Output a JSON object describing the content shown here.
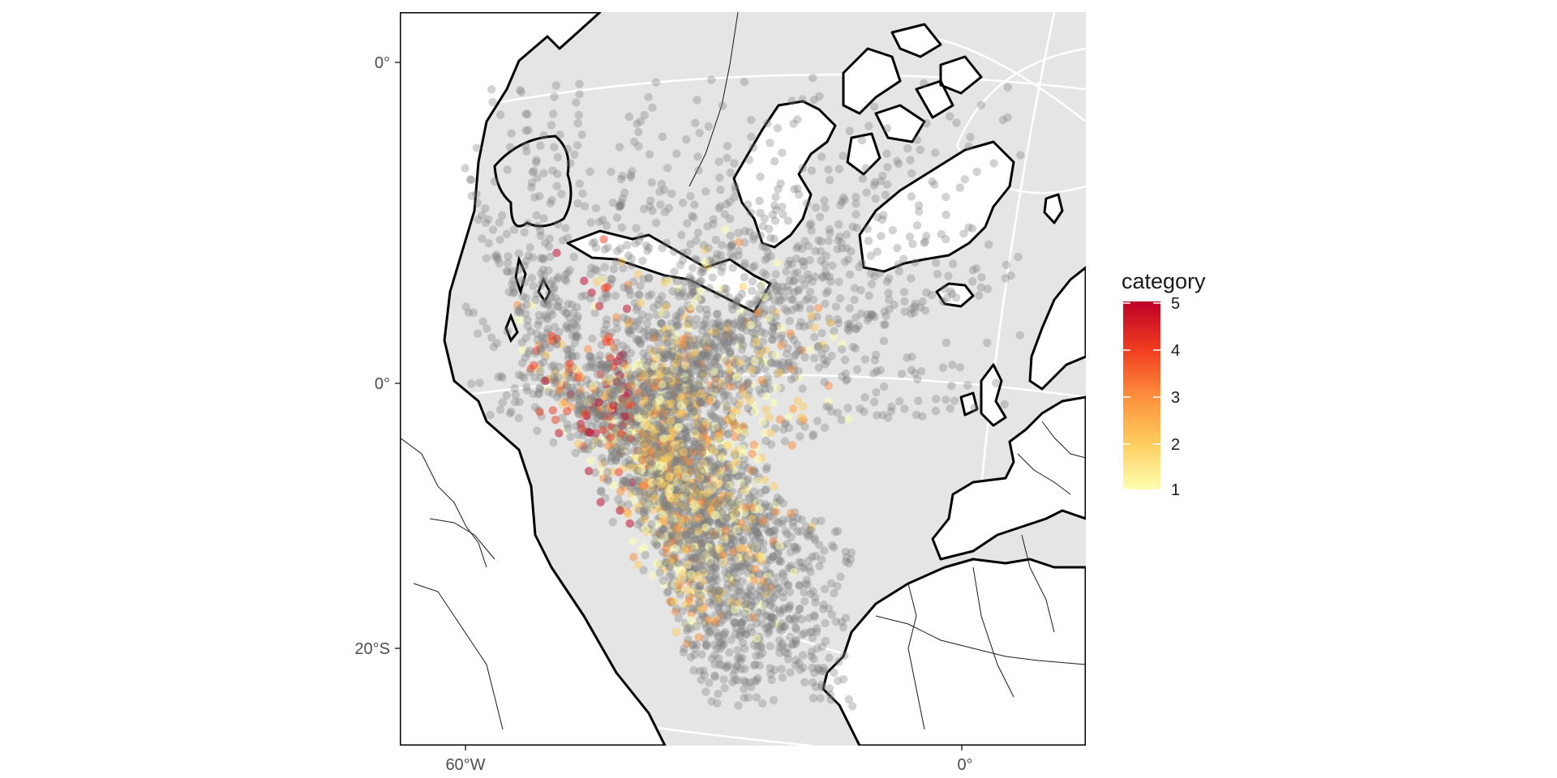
{
  "map": {
    "y_ticks": [
      "0°",
      "0°",
      "20°S"
    ],
    "x_ticks": [
      "60°W",
      "0°"
    ]
  },
  "legend": {
    "title": "category",
    "labels": [
      "5",
      "4",
      "3",
      "2",
      "1"
    ],
    "gradient": [
      "#ffffb2",
      "#fecc5c",
      "#fd8d3c",
      "#f03b20",
      "#bd0026"
    ]
  },
  "colors": {
    "panel_background": "#e5e5e5",
    "land": "#ffffff",
    "coastline": "#000000",
    "gridline": "#ffffff",
    "point_no_category": "#7f7f7f"
  }
}
